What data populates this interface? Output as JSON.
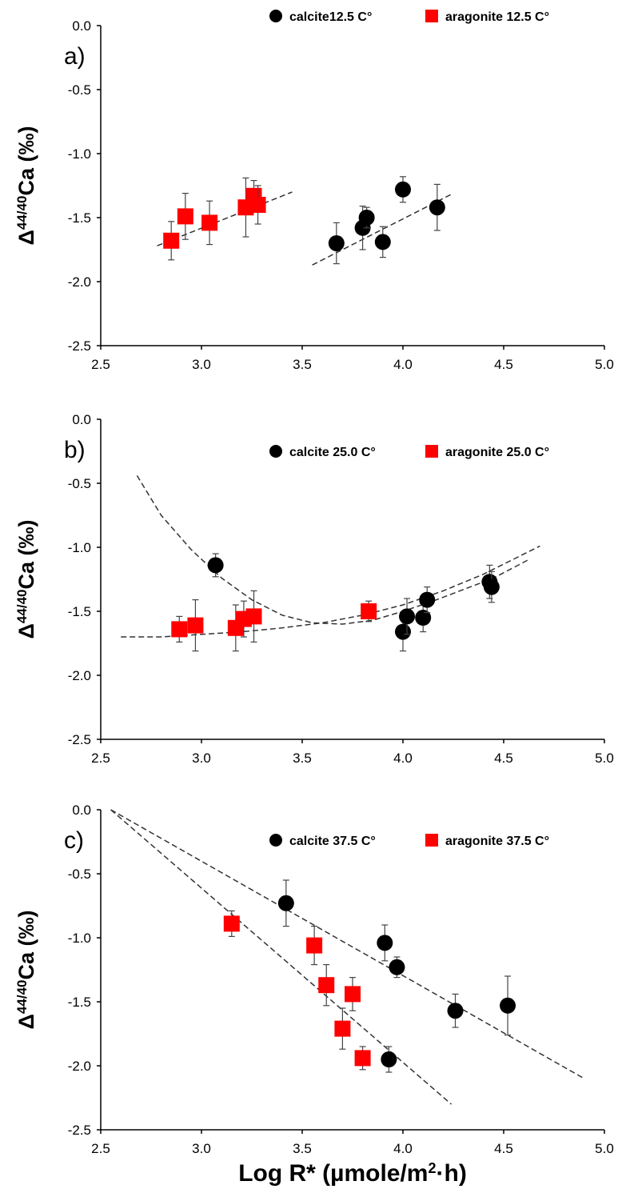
{
  "chart_data": [
    {
      "type": "scatter",
      "panel_label": "a)",
      "ylabel_prefix": "Δ",
      "ylabel_sup": "44/40",
      "ylabel_suffix": "Ca (‰)",
      "xlim": [
        2.5,
        5.0
      ],
      "ylim": [
        -2.5,
        0.0
      ],
      "xticks": [
        "2.5",
        "3.0",
        "3.5",
        "4.0",
        "4.5",
        "5.0"
      ],
      "yticks": [
        "0.0",
        "-0.5",
        "-1.0",
        "-1.5",
        "-2.0",
        "-2.5"
      ],
      "grid": false,
      "legend_placement": "top",
      "series": [
        {
          "name": "calcite12.5 C°",
          "marker": "circle",
          "color": "#000000",
          "points": [
            {
              "x": 3.67,
              "y": -1.7,
              "err": 0.16
            },
            {
              "x": 3.8,
              "y": -1.58,
              "err": 0.17
            },
            {
              "x": 3.82,
              "y": -1.5,
              "err": 0.08
            },
            {
              "x": 3.9,
              "y": -1.69,
              "err": 0.12
            },
            {
              "x": 4.0,
              "y": -1.28,
              "err": 0.1
            },
            {
              "x": 4.17,
              "y": -1.42,
              "err": 0.18
            }
          ],
          "fit": {
            "kind": "line",
            "x": [
              3.55,
              4.25
            ],
            "y": [
              -1.87,
              -1.31
            ]
          }
        },
        {
          "name": "aragonite 12.5 C°",
          "marker": "square",
          "color": "#ff0000",
          "points": [
            {
              "x": 2.85,
              "y": -1.68,
              "err": 0.15
            },
            {
              "x": 2.92,
              "y": -1.49,
              "err": 0.18
            },
            {
              "x": 3.04,
              "y": -1.54,
              "err": 0.17
            },
            {
              "x": 3.22,
              "y": -1.42,
              "err": 0.23
            },
            {
              "x": 3.26,
              "y": -1.33,
              "err": 0.12
            },
            {
              "x": 3.28,
              "y": -1.4,
              "err": 0.15
            }
          ],
          "fit": {
            "kind": "line",
            "x": [
              2.78,
              3.45
            ],
            "y": [
              -1.72,
              -1.3
            ]
          }
        }
      ]
    },
    {
      "type": "scatter",
      "panel_label": "b)",
      "ylabel_prefix": "Δ",
      "ylabel_sup": "44/40",
      "ylabel_suffix": "Ca (‰)",
      "xlim": [
        2.5,
        5.0
      ],
      "ylim": [
        -2.5,
        0.0
      ],
      "xticks": [
        "2.5",
        "3.0",
        "3.5",
        "4.0",
        "4.5",
        "5.0"
      ],
      "yticks": [
        "0.0",
        "-0.5",
        "-1.0",
        "-1.5",
        "-2.0",
        "-2.5"
      ],
      "grid": false,
      "legend_placement": "top",
      "series": [
        {
          "name": "calcite 25.0 C°",
          "marker": "circle",
          "color": "#000000",
          "points": [
            {
              "x": 3.07,
              "y": -1.14,
              "err": 0.09
            },
            {
              "x": 4.0,
              "y": -1.66,
              "err": 0.15
            },
            {
              "x": 4.02,
              "y": -1.54,
              "err": 0.14
            },
            {
              "x": 4.1,
              "y": -1.55,
              "err": 0.11
            },
            {
              "x": 4.12,
              "y": -1.41,
              "err": 0.1
            },
            {
              "x": 4.43,
              "y": -1.27,
              "err": 0.13
            },
            {
              "x": 4.44,
              "y": -1.31,
              "err": 0.12
            }
          ],
          "fit": {
            "kind": "polyline",
            "x": [
              2.68,
              2.8,
              2.95,
              3.1,
              3.25,
              3.4,
              3.55,
              3.7,
              3.85,
              4.0,
              4.15,
              4.3,
              4.45,
              4.62
            ],
            "y": [
              -0.44,
              -0.75,
              -1.02,
              -1.24,
              -1.41,
              -1.53,
              -1.59,
              -1.6,
              -1.57,
              -1.5,
              -1.42,
              -1.33,
              -1.24,
              -1.1
            ]
          }
        },
        {
          "name": "aragonite 25.0 C°",
          "marker": "square",
          "color": "#ff0000",
          "points": [
            {
              "x": 2.89,
              "y": -1.64,
              "err": 0.1
            },
            {
              "x": 2.97,
              "y": -1.61,
              "err": 0.2
            },
            {
              "x": 3.17,
              "y": -1.63,
              "err": 0.18
            },
            {
              "x": 3.21,
              "y": -1.56,
              "err": 0.14
            },
            {
              "x": 3.26,
              "y": -1.54,
              "err": 0.2
            },
            {
              "x": 3.83,
              "y": -1.5,
              "err": 0.08
            }
          ],
          "fit": {
            "kind": "polyline",
            "x": [
              2.6,
              2.8,
              3.0,
              3.2,
              3.4,
              3.6,
              3.8,
              4.0,
              4.2,
              4.4,
              4.68
            ],
            "y": [
              -1.7,
              -1.7,
              -1.68,
              -1.66,
              -1.63,
              -1.59,
              -1.53,
              -1.45,
              -1.34,
              -1.21,
              -0.99
            ]
          }
        }
      ]
    },
    {
      "type": "scatter",
      "panel_label": "c)",
      "ylabel_prefix": "Δ",
      "ylabel_sup": "44/40",
      "ylabel_suffix": "Ca (‰)",
      "xlabel_prefix": "Log R* (µmole/m",
      "xlabel_sup": "2",
      "xlabel_suffix": "·h)",
      "xlim": [
        2.5,
        5.0
      ],
      "ylim": [
        -2.5,
        0.0
      ],
      "xticks": [
        "2.5",
        "3.0",
        "3.5",
        "4.0",
        "4.5",
        "5.0"
      ],
      "yticks": [
        "0.0",
        "-0.5",
        "-1.0",
        "-1.5",
        "-2.0",
        "-2.5"
      ],
      "grid": false,
      "legend_placement": "top",
      "series": [
        {
          "name": "calcite 37.5 C°",
          "marker": "circle",
          "color": "#000000",
          "points": [
            {
              "x": 3.42,
              "y": -0.73,
              "err": 0.18
            },
            {
              "x": 3.91,
              "y": -1.04,
              "err": 0.14
            },
            {
              "x": 3.93,
              "y": -1.95,
              "err": 0.1
            },
            {
              "x": 3.97,
              "y": -1.23,
              "err": 0.08
            },
            {
              "x": 4.26,
              "y": -1.57,
              "err": 0.13
            },
            {
              "x": 4.52,
              "y": -1.53,
              "err": 0.23
            }
          ],
          "fit": {
            "kind": "line",
            "x": [
              2.55,
              4.9
            ],
            "y": [
              0.0,
              -2.1
            ]
          }
        },
        {
          "name": "aragonite 37.5 C°",
          "marker": "square",
          "color": "#ff0000",
          "points": [
            {
              "x": 3.15,
              "y": -0.89,
              "err": 0.1
            },
            {
              "x": 3.56,
              "y": -1.06,
              "err": 0.15
            },
            {
              "x": 3.62,
              "y": -1.37,
              "err": 0.16
            },
            {
              "x": 3.7,
              "y": -1.71,
              "err": 0.16
            },
            {
              "x": 3.75,
              "y": -1.44,
              "err": 0.13
            },
            {
              "x": 3.8,
              "y": -1.94,
              "err": 0.09
            }
          ],
          "fit": {
            "kind": "line",
            "x": [
              2.55,
              4.24
            ],
            "y": [
              0.0,
              -2.3
            ]
          }
        }
      ]
    }
  ]
}
